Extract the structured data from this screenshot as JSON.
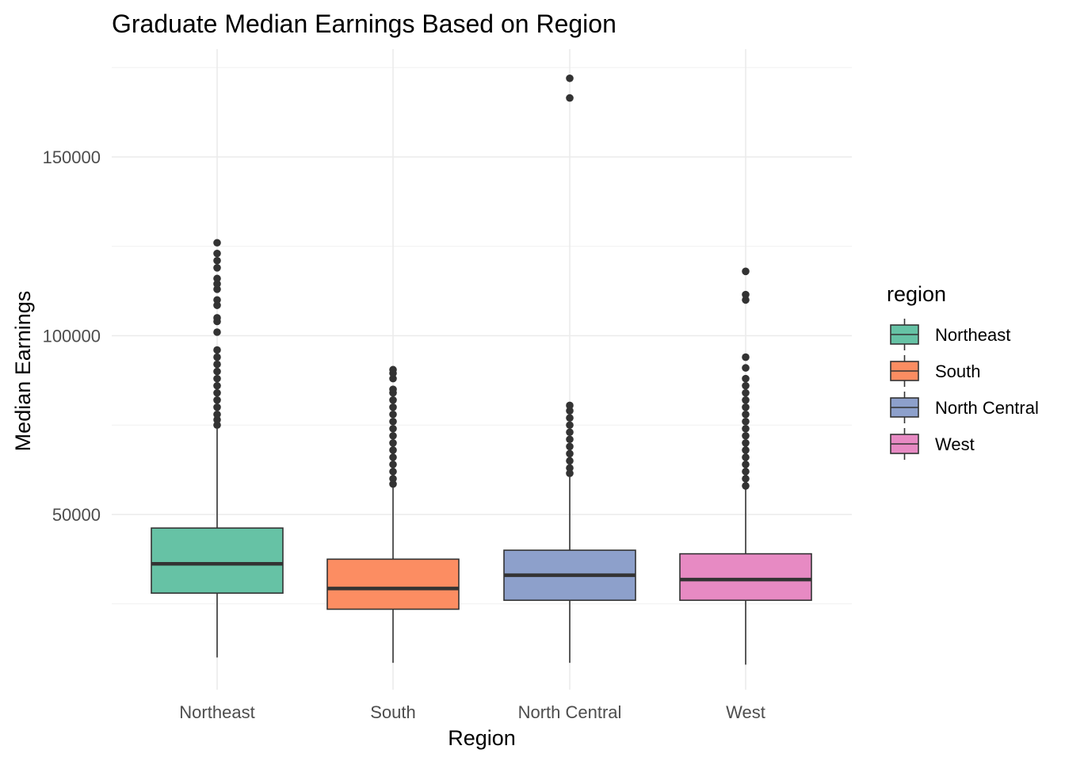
{
  "chart_data": {
    "type": "boxplot",
    "title": "Graduate Median Earnings Based on Region",
    "xlabel": "Region",
    "ylabel": "Median Earnings",
    "ylim": [
      5000,
      177000
    ],
    "y_ticks": [
      50000,
      100000,
      150000
    ],
    "y_tick_labels": [
      "50000",
      "100000",
      "150000"
    ],
    "grid": true,
    "legend": {
      "title": "region",
      "position": "right"
    },
    "categories": [
      "Northeast",
      "South",
      "North Central",
      "West"
    ],
    "colors": [
      "#66c2a5",
      "#fc8d62",
      "#8da0cb",
      "#e78ac3"
    ],
    "series": [
      {
        "name": "Northeast",
        "whisker_low": 10000,
        "q1": 28000,
        "median": 36200,
        "q3": 46200,
        "whisker_high": 74000,
        "outliers": [
          75000,
          76500,
          78000,
          80000,
          82000,
          84000,
          86000,
          88000,
          90000,
          92000,
          94000,
          96000,
          101000,
          104000,
          105000,
          108500,
          110000,
          113000,
          114500,
          116000,
          119000,
          121000,
          123000,
          126000
        ]
      },
      {
        "name": "South",
        "whisker_low": 8500,
        "q1": 23500,
        "median": 29300,
        "q3": 37500,
        "whisker_high": 57500,
        "outliers": [
          58500,
          60000,
          62000,
          64000,
          66000,
          68000,
          70000,
          72000,
          74000,
          76000,
          78000,
          80000,
          82000,
          84000,
          85000,
          88000,
          89500,
          90500
        ]
      },
      {
        "name": "North Central",
        "whisker_low": 8500,
        "q1": 26000,
        "median": 33000,
        "q3": 40000,
        "whisker_high": 60500,
        "outliers": [
          61500,
          63000,
          65000,
          67000,
          69000,
          71000,
          73000,
          75000,
          77000,
          79000,
          80500,
          166500,
          172000
        ]
      },
      {
        "name": "West",
        "whisker_low": 8000,
        "q1": 26000,
        "median": 31800,
        "q3": 39000,
        "whisker_high": 57000,
        "outliers": [
          58000,
          60000,
          62000,
          64000,
          66000,
          68000,
          70000,
          72000,
          74000,
          76000,
          78000,
          80000,
          82000,
          84000,
          86000,
          88000,
          91000,
          94000,
          110000,
          111500,
          118000
        ]
      }
    ]
  }
}
